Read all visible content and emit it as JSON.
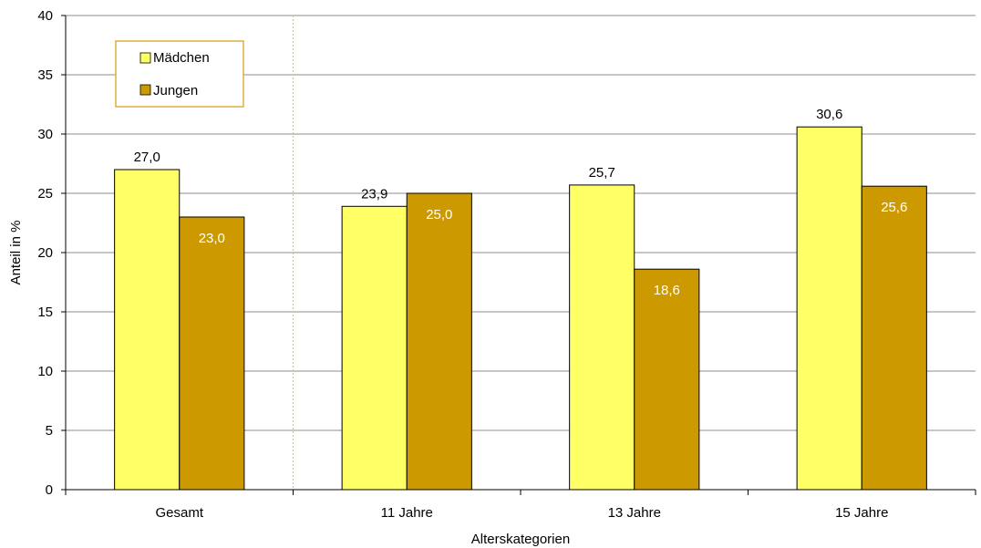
{
  "chart_data": {
    "type": "bar",
    "categories": [
      "Gesamt",
      "11 Jahre",
      "13 Jahre",
      "15 Jahre"
    ],
    "series": [
      {
        "name": "Mädchen",
        "values": [
          27.0,
          23.9,
          25.7,
          30.6
        ],
        "labels": [
          "27,0",
          "23,9",
          "25,7",
          "30,6"
        ],
        "color": "#FFFF66",
        "label_color": "#000000",
        "label_position": "above"
      },
      {
        "name": "Jungen",
        "values": [
          23.0,
          25.0,
          18.6,
          25.6
        ],
        "labels": [
          "23,0",
          "25,0",
          "18,6",
          "25,6"
        ],
        "color": "#CC9900",
        "label_color": "#ffffff",
        "label_position": "inside-top"
      }
    ],
    "xlabel": "Alterskategorien",
    "ylabel": "Anteil in %",
    "ylim": [
      0,
      40
    ],
    "yticks": [
      0,
      5,
      10,
      15,
      20,
      25,
      30,
      35,
      40
    ],
    "grid": true,
    "legend_position": "top-left",
    "legend_border_color": "#D9A520",
    "separator_after_category": 0,
    "separator_color": "#E8C26A"
  }
}
